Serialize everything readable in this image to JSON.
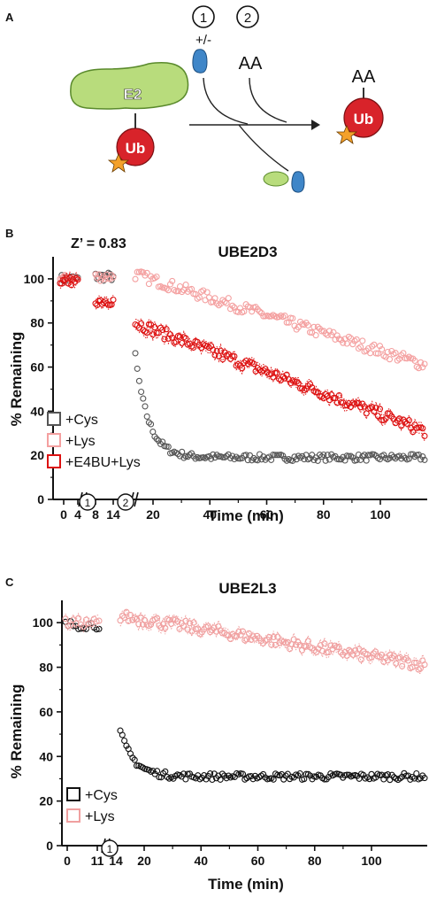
{
  "panels": {
    "a": "A",
    "b": "B",
    "c": "C"
  },
  "scheme": {
    "step1": "1",
    "step2": "2",
    "plusminus": "+/-",
    "aa_left": "AA",
    "aa_right": "AA",
    "e2": "E2",
    "ub_left": "Ub",
    "ub_right": "Ub"
  },
  "chart_data": [
    {
      "type": "scatter",
      "title": "UBE2D3",
      "annotation": "Z’ = 0.83",
      "xlabel": "Time (min)",
      "ylabel": "% Remaining",
      "ylim": [
        0,
        110
      ],
      "yticks": [
        0,
        20,
        40,
        60,
        80,
        100
      ],
      "xticks_early": [
        "0",
        "4",
        "8",
        "14"
      ],
      "xticks": [
        20,
        40,
        60,
        80,
        100
      ],
      "step_markers": [
        "1",
        "2"
      ],
      "legend": [
        "+Cys",
        "+Lys",
        "+E4BU+Lys"
      ],
      "legend_position": "bottom-left",
      "colors": {
        "cys": "#555555",
        "lys": "#f4a0a0",
        "e4bu": "#dd1111"
      },
      "series": [
        {
          "name": "+Cys",
          "segments": [
            {
              "x_range": [
                0,
                4
              ],
              "y": 100
            },
            {
              "x_range": [
                8,
                14
              ],
              "y": 101
            },
            {
              "x_range": [
                18,
                112
              ],
              "start": 65,
              "plateau": 19
            }
          ]
        },
        {
          "name": "+Lys",
          "segments": [
            {
              "x_range": [
                0,
                4
              ],
              "y": 100
            },
            {
              "x_range": [
                8,
                14
              ],
              "y": 101
            },
            {
              "x_range": [
                18,
                112
              ],
              "start": 102,
              "end": 61
            }
          ]
        },
        {
          "name": "+E4BU+Lys",
          "segments": [
            {
              "x_range": [
                0,
                4
              ],
              "y": 99
            },
            {
              "x_range": [
                8,
                14
              ],
              "y": 90
            },
            {
              "x_range": [
                18,
                112
              ],
              "start": 80,
              "end": 31
            }
          ]
        }
      ]
    },
    {
      "type": "scatter",
      "title": "UBE2L3",
      "xlabel": "Time (min)",
      "ylabel": "% Remaining",
      "ylim": [
        0,
        110
      ],
      "yticks": [
        0,
        20,
        40,
        60,
        80,
        100
      ],
      "xticks_early": [
        "0",
        "11",
        "14"
      ],
      "xticks": [
        20,
        40,
        60,
        80,
        100
      ],
      "step_markers": [
        "1"
      ],
      "legend": [
        "+Cys",
        "+Lys"
      ],
      "legend_position": "bottom-left",
      "colors": {
        "cys": "#111111",
        "lys": "#f0a0a0"
      },
      "series": [
        {
          "name": "+Cys",
          "segments": [
            {
              "x_range": [
                0,
                11
              ],
              "y": 99
            },
            {
              "x_range": [
                14,
                110
              ],
              "start": 51,
              "plateau": 31
            }
          ]
        },
        {
          "name": "+Lys",
          "segments": [
            {
              "x_range": [
                0,
                11
              ],
              "y": 100
            },
            {
              "x_range": [
                14,
                110
              ],
              "start": 103,
              "end": 81
            }
          ]
        }
      ]
    }
  ]
}
